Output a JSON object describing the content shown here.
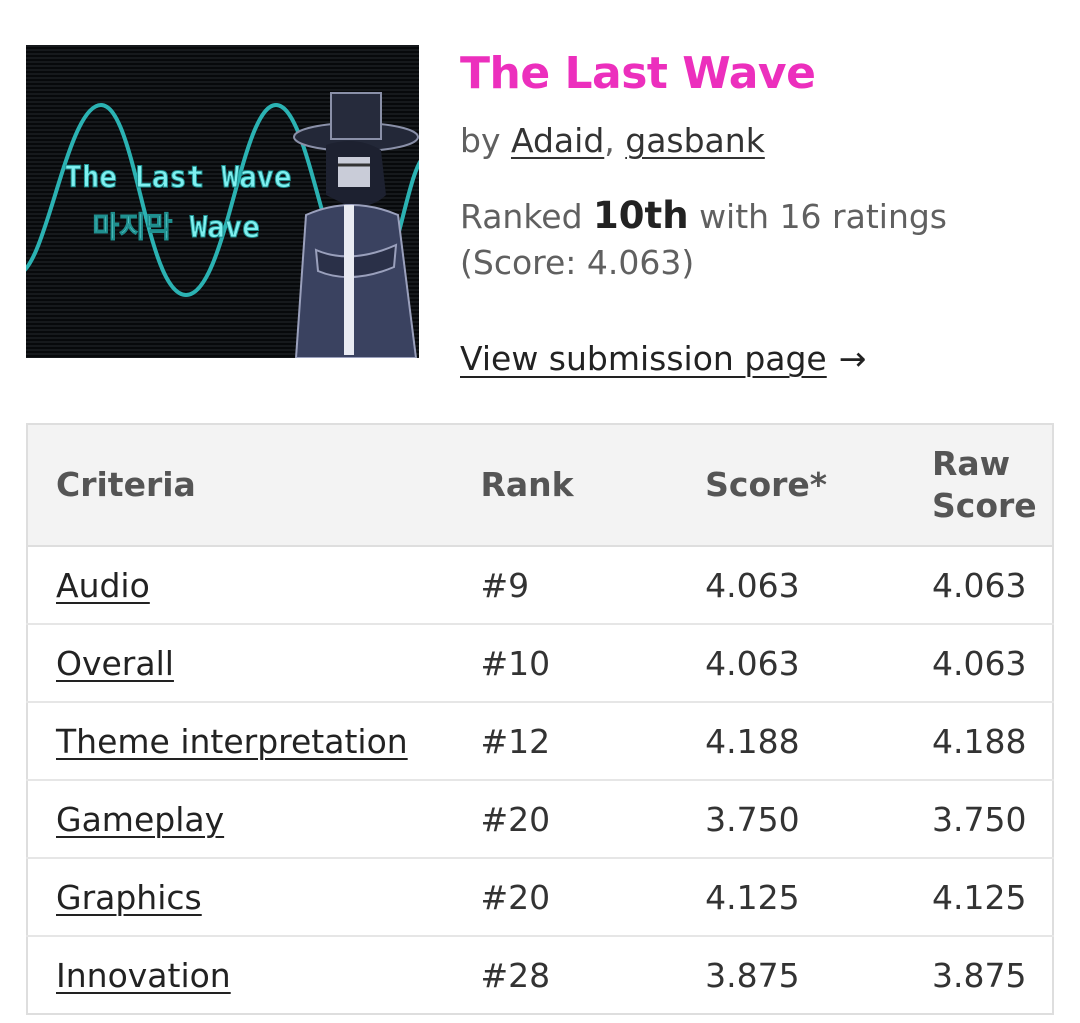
{
  "game": {
    "title": "The Last Wave",
    "thumbnail": {
      "line1": "The Last Wave",
      "line2": "마지막 Wave",
      "wave_color": "#2fc4c4",
      "text_color": "#7ff0f0"
    },
    "by_prefix": "by",
    "authors": [
      "Adaid",
      "gasbank"
    ],
    "author_separator": ", "
  },
  "ranking": {
    "prefix": "Ranked",
    "rank": "10th",
    "suffix": "with 16 ratings (Score: 4.063)"
  },
  "view_link": {
    "label": "View submission page",
    "arrow": "→"
  },
  "table": {
    "headers": {
      "criteria": "Criteria",
      "rank": "Rank",
      "score": "Score*",
      "raw_score": "Raw Score"
    },
    "rows": [
      {
        "criteria": "Audio",
        "rank": "#9",
        "score": "4.063",
        "raw": "4.063"
      },
      {
        "criteria": "Overall",
        "rank": "#10",
        "score": "4.063",
        "raw": "4.063"
      },
      {
        "criteria": "Theme interpretation",
        "rank": "#12",
        "score": "4.188",
        "raw": "4.188"
      },
      {
        "criteria": "Gameplay",
        "rank": "#20",
        "score": "3.750",
        "raw": "3.750"
      },
      {
        "criteria": "Graphics",
        "rank": "#20",
        "score": "4.125",
        "raw": "4.125"
      },
      {
        "criteria": "Innovation",
        "rank": "#28",
        "score": "3.875",
        "raw": "3.875"
      }
    ]
  },
  "colors": {
    "title": "#ec2fbd",
    "text_muted": "#606060",
    "table_header_bg": "#f3f3f3",
    "border": "#dedede"
  }
}
